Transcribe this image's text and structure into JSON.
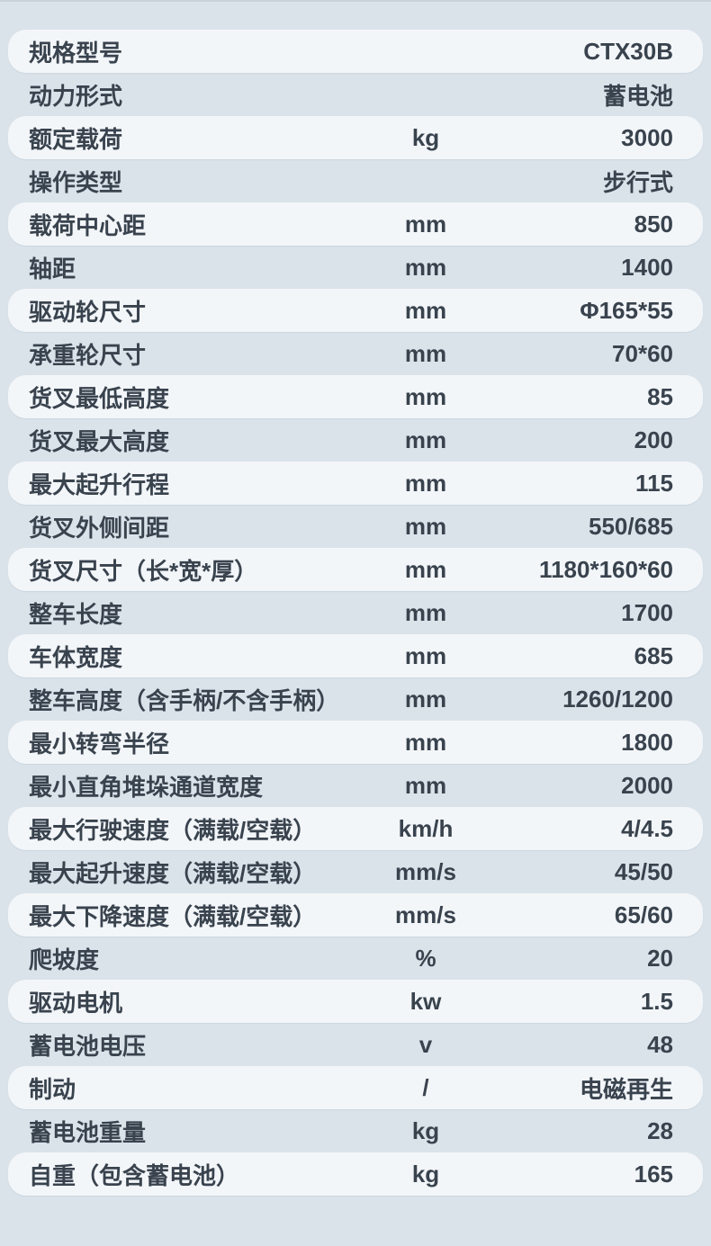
{
  "table": {
    "colors": {
      "background": "#dae3ea",
      "row_pill": "#f3f6f9",
      "text": "#39434e"
    },
    "rows": [
      {
        "label": "规格型号",
        "unit": "",
        "value": "CTX30B"
      },
      {
        "label": "动力形式",
        "unit": "",
        "value": "蓄电池"
      },
      {
        "label": "额定载荷",
        "unit": "kg",
        "value": "3000"
      },
      {
        "label": "操作类型",
        "unit": "",
        "value": "步行式"
      },
      {
        "label": "载荷中心距",
        "unit": "mm",
        "value": "850"
      },
      {
        "label": "轴距",
        "unit": "mm",
        "value": "1400"
      },
      {
        "label": "驱动轮尺寸",
        "unit": "mm",
        "value": "Φ165*55"
      },
      {
        "label": "承重轮尺寸",
        "unit": "mm",
        "value": "70*60"
      },
      {
        "label": "货叉最低高度",
        "unit": "mm",
        "value": "85"
      },
      {
        "label": "货叉最大高度",
        "unit": "mm",
        "value": "200"
      },
      {
        "label": "最大起升行程",
        "unit": "mm",
        "value": "115"
      },
      {
        "label": "货叉外侧间距",
        "unit": "mm",
        "value": "550/685"
      },
      {
        "label": "货叉尺寸（长*宽*厚）",
        "unit": "mm",
        "value": "1180*160*60"
      },
      {
        "label": "整车长度",
        "unit": "mm",
        "value": "1700"
      },
      {
        "label": "车体宽度",
        "unit": "mm",
        "value": "685"
      },
      {
        "label": "整车高度（含手柄/不含手柄）",
        "unit": "mm",
        "value": "1260/1200"
      },
      {
        "label": "最小转弯半径",
        "unit": "mm",
        "value": "1800"
      },
      {
        "label": "最小直角堆垛通道宽度",
        "unit": "mm",
        "value": "2000"
      },
      {
        "label": "最大行驶速度（满载/空载）",
        "unit": "km/h",
        "value": "4/4.5"
      },
      {
        "label": "最大起升速度（满载/空载）",
        "unit": "mm/s",
        "value": "45/50"
      },
      {
        "label": "最大下降速度（满载/空载）",
        "unit": "mm/s",
        "value": "65/60"
      },
      {
        "label": "爬坡度",
        "unit": "%",
        "value": "20"
      },
      {
        "label": "驱动电机",
        "unit": "kw",
        "value": "1.5"
      },
      {
        "label": "蓄电池电压",
        "unit": "v",
        "value": "48"
      },
      {
        "label": "制动",
        "unit": "/",
        "value": "电磁再生"
      },
      {
        "label": "蓄电池重量",
        "unit": "kg",
        "value": "28"
      },
      {
        "label": "自重（包含蓄电池）",
        "unit": "kg",
        "value": "165"
      }
    ]
  }
}
